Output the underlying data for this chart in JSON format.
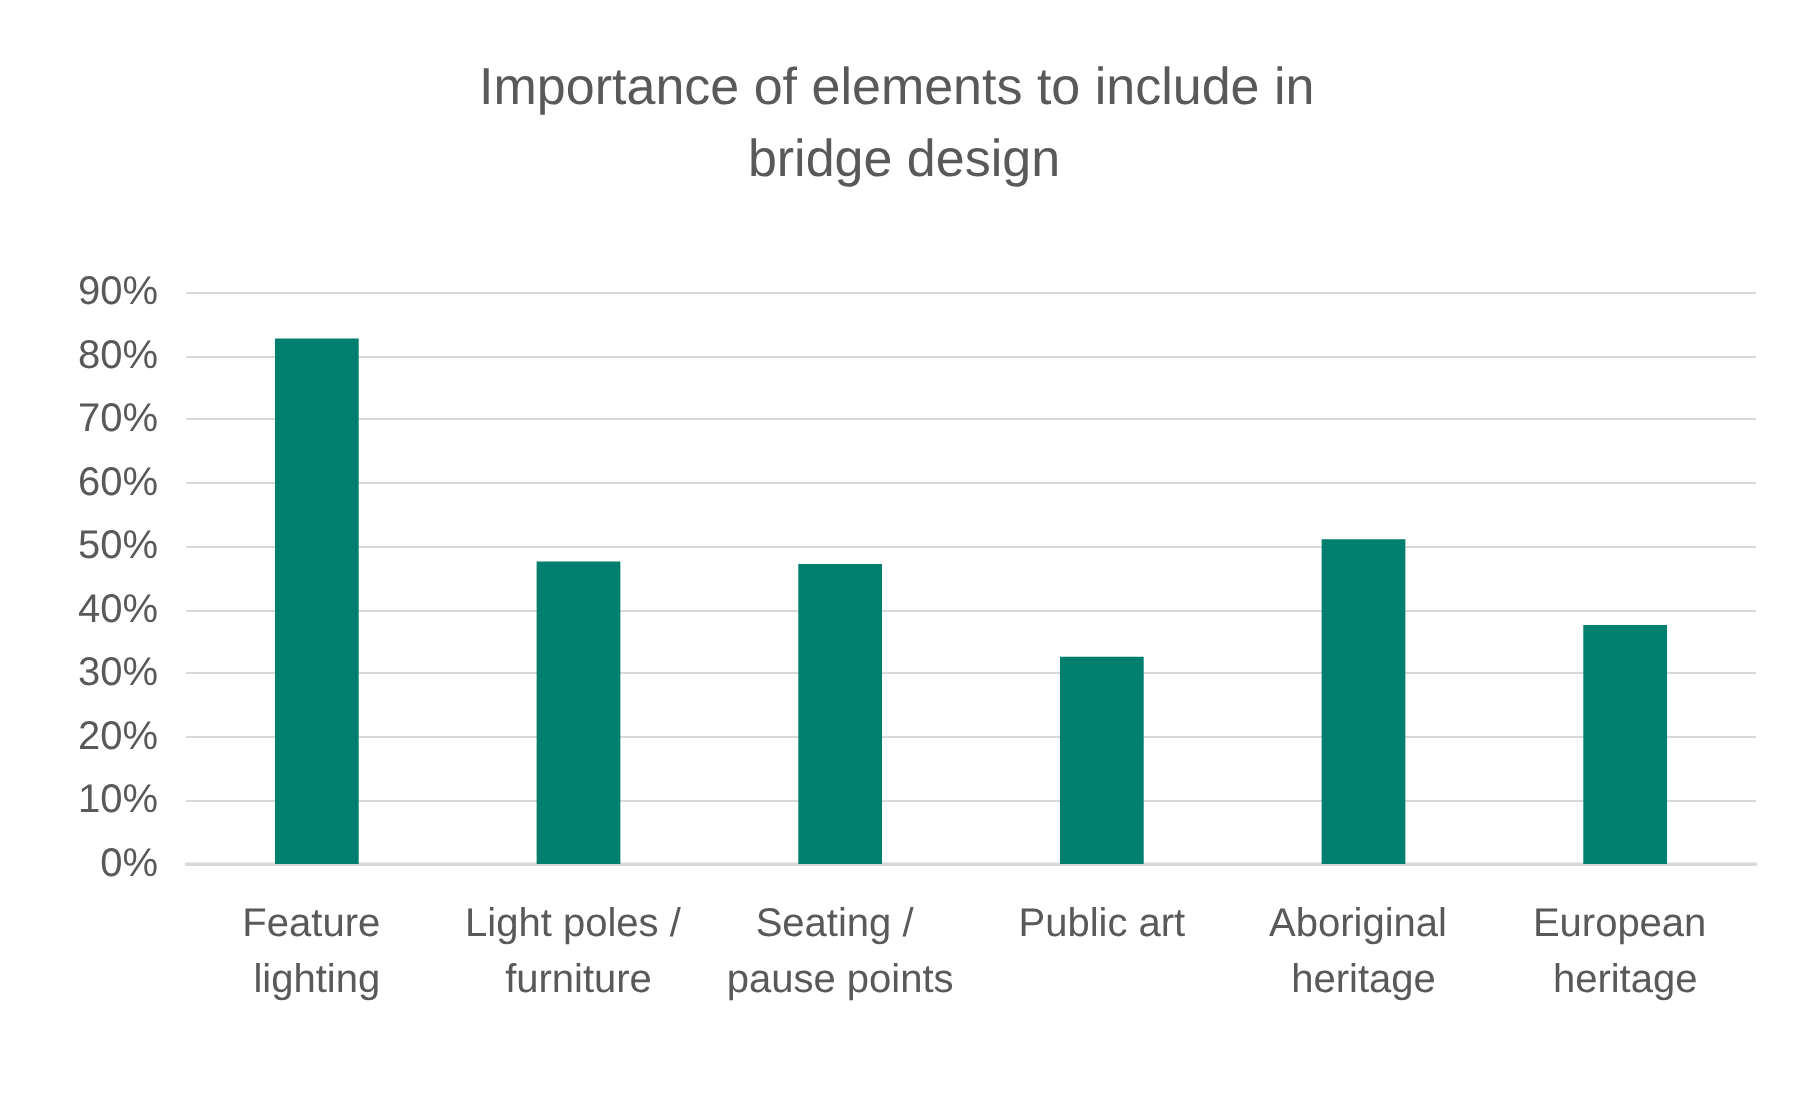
{
  "chart_data": {
    "type": "bar",
    "title": "Importance of elements to include in bridge design",
    "categories": [
      "Feature lighting",
      "Light poles / furniture",
      "Seating / pause points",
      "Public art",
      "Aboriginal heritage",
      "European heritage"
    ],
    "values": [
      82.7,
      47.6,
      47.2,
      32.6,
      51.1,
      37.6
    ],
    "color": "#007e6e",
    "ylim": [
      0,
      90
    ],
    "yticks": [
      {
        "value": 0,
        "label": "0%"
      },
      {
        "value": 10,
        "label": "10%"
      },
      {
        "value": 20,
        "label": "20%"
      },
      {
        "value": 30,
        "label": "30%"
      },
      {
        "value": 40,
        "label": "40%"
      },
      {
        "value": 50,
        "label": "50%"
      },
      {
        "value": 60,
        "label": "60%"
      },
      {
        "value": 70,
        "label": "70%"
      },
      {
        "value": 80,
        "label": "80%"
      },
      {
        "value": 90,
        "label": "90%"
      }
    ],
    "grid": "y"
  }
}
